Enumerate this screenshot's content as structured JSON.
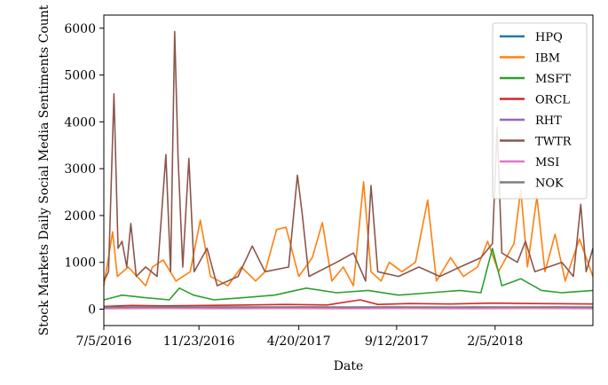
{
  "chart_data": {
    "type": "line",
    "title": "",
    "xlabel": "Date",
    "ylabel": "Stock Markets Daily Social Media Sentiments Count",
    "x_range": [
      "2016-07-05",
      "2018-06-30"
    ],
    "x_tick_labels": [
      "7/5/2016",
      "11/23/2016",
      "4/20/2017",
      "9/12/2017",
      "2/5/2018"
    ],
    "x_tick_dates": [
      "2016-07-05",
      "2016-11-23",
      "2017-04-20",
      "2017-09-12",
      "2018-02-05"
    ],
    "ylim": [
      -350,
      6280
    ],
    "y_ticks": [
      0,
      1000,
      2000,
      3000,
      4000,
      5000,
      6000
    ],
    "grid": false,
    "legend_position": "top-right",
    "series": [
      {
        "name": "HPQ",
        "color": "#1f77b4",
        "points": [
          [
            "2016-07-05",
            30
          ],
          [
            "2016-09-01",
            35
          ],
          [
            "2016-11-01",
            28
          ],
          [
            "2017-01-01",
            30
          ],
          [
            "2017-03-01",
            40
          ],
          [
            "2017-05-01",
            30
          ],
          [
            "2017-07-01",
            35
          ],
          [
            "2017-09-01",
            30
          ],
          [
            "2017-11-01",
            32
          ],
          [
            "2018-01-01",
            40
          ],
          [
            "2018-03-01",
            35
          ],
          [
            "2018-05-01",
            30
          ],
          [
            "2018-06-30",
            30
          ]
        ]
      },
      {
        "name": "IBM",
        "color": "#ff7f0e",
        "points": [
          [
            "2016-07-05",
            500
          ],
          [
            "2016-07-18",
            1650
          ],
          [
            "2016-07-25",
            700
          ],
          [
            "2016-08-10",
            900
          ],
          [
            "2016-09-05",
            500
          ],
          [
            "2016-09-15",
            900
          ],
          [
            "2016-10-01",
            1050
          ],
          [
            "2016-10-20",
            600
          ],
          [
            "2016-11-10",
            800
          ],
          [
            "2016-11-25",
            1900
          ],
          [
            "2016-12-10",
            700
          ],
          [
            "2017-01-05",
            500
          ],
          [
            "2017-01-25",
            900
          ],
          [
            "2017-02-15",
            600
          ],
          [
            "2017-03-01",
            800
          ],
          [
            "2017-03-18",
            1700
          ],
          [
            "2017-04-01",
            1750
          ],
          [
            "2017-04-20",
            700
          ],
          [
            "2017-05-10",
            1100
          ],
          [
            "2017-05-25",
            1850
          ],
          [
            "2017-06-08",
            600
          ],
          [
            "2017-06-25",
            900
          ],
          [
            "2017-07-10",
            500
          ],
          [
            "2017-07-25",
            2720
          ],
          [
            "2017-08-05",
            800
          ],
          [
            "2017-08-20",
            600
          ],
          [
            "2017-09-01",
            1000
          ],
          [
            "2017-09-20",
            800
          ],
          [
            "2017-10-10",
            1000
          ],
          [
            "2017-10-28",
            2330
          ],
          [
            "2017-11-10",
            600
          ],
          [
            "2017-12-01",
            1100
          ],
          [
            "2017-12-20",
            700
          ],
          [
            "2018-01-10",
            900
          ],
          [
            "2018-01-25",
            1450
          ],
          [
            "2018-02-10",
            800
          ],
          [
            "2018-03-05",
            1400
          ],
          [
            "2018-03-15",
            2550
          ],
          [
            "2018-03-25",
            900
          ],
          [
            "2018-04-08",
            2400
          ],
          [
            "2018-04-20",
            800
          ],
          [
            "2018-05-05",
            1600
          ],
          [
            "2018-05-20",
            600
          ],
          [
            "2018-06-10",
            1500
          ],
          [
            "2018-06-30",
            700
          ]
        ]
      },
      {
        "name": "MSFT",
        "color": "#2ca02c",
        "points": [
          [
            "2016-07-05",
            200
          ],
          [
            "2016-08-01",
            300
          ],
          [
            "2016-09-01",
            250
          ],
          [
            "2016-10-10",
            200
          ],
          [
            "2016-10-25",
            450
          ],
          [
            "2016-11-15",
            300
          ],
          [
            "2016-12-15",
            200
          ],
          [
            "2017-02-01",
            250
          ],
          [
            "2017-03-15",
            300
          ],
          [
            "2017-05-01",
            450
          ],
          [
            "2017-06-15",
            350
          ],
          [
            "2017-08-01",
            400
          ],
          [
            "2017-09-15",
            300
          ],
          [
            "2017-11-01",
            350
          ],
          [
            "2017-12-15",
            400
          ],
          [
            "2018-01-15",
            350
          ],
          [
            "2018-02-01",
            1300
          ],
          [
            "2018-02-15",
            500
          ],
          [
            "2018-03-15",
            650
          ],
          [
            "2018-04-15",
            400
          ],
          [
            "2018-05-15",
            350
          ],
          [
            "2018-06-30",
            400
          ]
        ]
      },
      {
        "name": "ORCL",
        "color": "#d62728",
        "points": [
          [
            "2016-07-05",
            60
          ],
          [
            "2016-08-15",
            80
          ],
          [
            "2016-10-01",
            70
          ],
          [
            "2016-12-01",
            80
          ],
          [
            "2017-02-01",
            90
          ],
          [
            "2017-04-01",
            100
          ],
          [
            "2017-06-01",
            90
          ],
          [
            "2017-07-20",
            200
          ],
          [
            "2017-08-15",
            100
          ],
          [
            "2017-10-01",
            120
          ],
          [
            "2017-12-01",
            110
          ],
          [
            "2018-02-01",
            130
          ],
          [
            "2018-04-01",
            120
          ],
          [
            "2018-06-30",
            110
          ]
        ]
      },
      {
        "name": "RHT",
        "color": "#9467bd",
        "points": [
          [
            "2016-07-05",
            20
          ],
          [
            "2016-09-01",
            25
          ],
          [
            "2016-11-01",
            20
          ],
          [
            "2017-01-01",
            25
          ],
          [
            "2017-03-01",
            20
          ],
          [
            "2017-05-01",
            25
          ],
          [
            "2017-07-01",
            20
          ],
          [
            "2017-09-01",
            25
          ],
          [
            "2017-11-01",
            20
          ],
          [
            "2018-01-01",
            25
          ],
          [
            "2018-03-01",
            20
          ],
          [
            "2018-05-01",
            25
          ],
          [
            "2018-06-30",
            20
          ]
        ]
      },
      {
        "name": "TWTR",
        "color": "#8c564b",
        "points": [
          [
            "2016-07-05",
            600
          ],
          [
            "2016-07-12",
            800
          ],
          [
            "2016-07-20",
            4600
          ],
          [
            "2016-07-26",
            1300
          ],
          [
            "2016-08-01",
            1450
          ],
          [
            "2016-08-08",
            900
          ],
          [
            "2016-08-14",
            1830
          ],
          [
            "2016-08-22",
            700
          ],
          [
            "2016-09-05",
            900
          ],
          [
            "2016-09-22",
            700
          ],
          [
            "2016-10-05",
            3300
          ],
          [
            "2016-10-12",
            800
          ],
          [
            "2016-10-18",
            5930
          ],
          [
            "2016-10-23",
            3250
          ],
          [
            "2016-10-30",
            900
          ],
          [
            "2016-11-08",
            3220
          ],
          [
            "2016-11-16",
            800
          ],
          [
            "2016-12-05",
            1300
          ],
          [
            "2016-12-20",
            500
          ],
          [
            "2017-01-20",
            700
          ],
          [
            "2017-02-10",
            1350
          ],
          [
            "2017-03-01",
            800
          ],
          [
            "2017-04-05",
            900
          ],
          [
            "2017-04-18",
            2860
          ],
          [
            "2017-04-25",
            2050
          ],
          [
            "2017-05-05",
            700
          ],
          [
            "2017-06-15",
            1000
          ],
          [
            "2017-07-10",
            1200
          ],
          [
            "2017-07-28",
            600
          ],
          [
            "2017-08-05",
            2640
          ],
          [
            "2017-08-15",
            800
          ],
          [
            "2017-09-15",
            700
          ],
          [
            "2017-10-15",
            900
          ],
          [
            "2017-11-15",
            700
          ],
          [
            "2017-12-15",
            900
          ],
          [
            "2018-01-15",
            1100
          ],
          [
            "2018-02-01",
            1400
          ],
          [
            "2018-02-08",
            3880
          ],
          [
            "2018-02-15",
            1200
          ],
          [
            "2018-03-10",
            1000
          ],
          [
            "2018-03-22",
            1450
          ],
          [
            "2018-04-05",
            800
          ],
          [
            "2018-04-25",
            900
          ],
          [
            "2018-05-15",
            1000
          ],
          [
            "2018-06-01",
            700
          ],
          [
            "2018-06-12",
            2240
          ],
          [
            "2018-06-20",
            800
          ],
          [
            "2018-06-30",
            1300
          ]
        ]
      },
      {
        "name": "MSI",
        "color": "#e377c2",
        "points": [
          [
            "2016-07-05",
            10
          ],
          [
            "2016-10-01",
            15
          ],
          [
            "2017-01-01",
            10
          ],
          [
            "2017-04-01",
            15
          ],
          [
            "2017-07-01",
            10
          ],
          [
            "2017-10-01",
            15
          ],
          [
            "2018-01-01",
            10
          ],
          [
            "2018-04-01",
            15
          ],
          [
            "2018-06-30",
            10
          ]
        ]
      },
      {
        "name": "NOK",
        "color": "#7f7f7f",
        "points": [
          [
            "2016-07-05",
            40
          ],
          [
            "2016-09-01",
            50
          ],
          [
            "2016-11-01",
            45
          ],
          [
            "2017-01-01",
            50
          ],
          [
            "2017-03-01",
            45
          ],
          [
            "2017-05-01",
            50
          ],
          [
            "2017-07-01",
            45
          ],
          [
            "2017-09-01",
            50
          ],
          [
            "2017-11-01",
            45
          ],
          [
            "2018-01-01",
            50
          ],
          [
            "2018-03-01",
            45
          ],
          [
            "2018-05-01",
            50
          ],
          [
            "2018-06-30",
            45
          ]
        ]
      }
    ]
  }
}
